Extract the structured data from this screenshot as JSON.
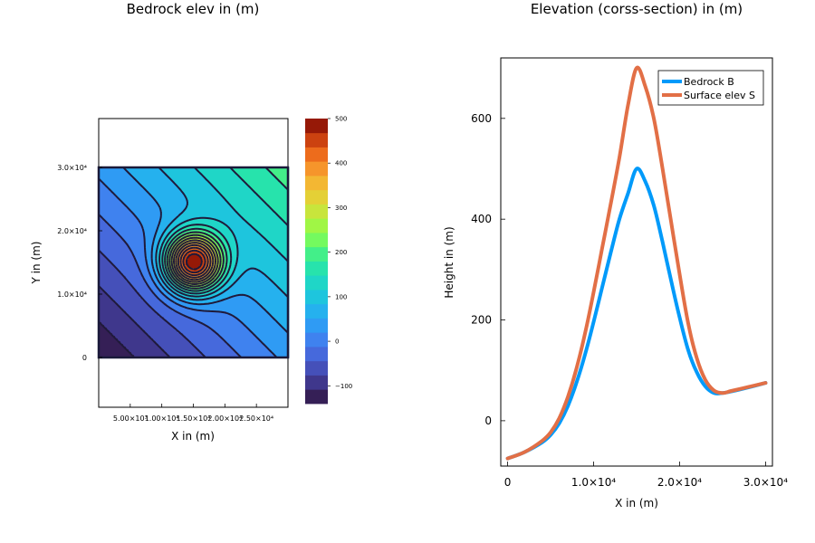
{
  "chart_data": [
    {
      "type": "contour",
      "title": "Bedrock elev in (m)",
      "xlabel": "X in (m)",
      "ylabel": "Y in (m)",
      "xlim": [
        0,
        30000
      ],
      "ylim": [
        0,
        30000
      ],
      "xticks": [
        {
          "value": 5000,
          "label": "5.00×10³"
        },
        {
          "value": 10000,
          "label": "1.00×10⁴"
        },
        {
          "value": 15000,
          "label": "1.50×10⁴"
        },
        {
          "value": 20000,
          "label": "2.00×10⁴"
        },
        {
          "value": 25000,
          "label": "2.50×10⁴"
        }
      ],
      "yticks": [
        {
          "value": 0,
          "label": "0"
        },
        {
          "value": 10000,
          "label": "1.0×10⁴"
        },
        {
          "value": 20000,
          "label": "2.0×10⁴"
        },
        {
          "value": 30000,
          "label": "3.0×10⁴"
        }
      ],
      "colorbar": {
        "range": [
          -140,
          500
        ],
        "ticks": [
          -100,
          0,
          100,
          200,
          300,
          400,
          500
        ],
        "labels": [
          "−100",
          "0",
          "100",
          "200",
          "300",
          "400",
          "500"
        ],
        "levels": 20
      },
      "field": {
        "description": "bedrock = tilted plane plus a gaussian hill",
        "peak_center": [
          15000,
          15000
        ],
        "peak_value": 500,
        "corner_min": -140,
        "corner_max": 200
      }
    },
    {
      "type": "line",
      "title": "Elevation (corss-section) in (m)",
      "xlabel": "X in (m)",
      "ylabel": "Height in (m)",
      "xlim": [
        -800,
        30800
      ],
      "ylim": [
        -90,
        720
      ],
      "xticks": [
        {
          "value": 0,
          "label": "0"
        },
        {
          "value": 10000,
          "label": "1.0×10⁴"
        },
        {
          "value": 20000,
          "label": "2.0×10⁴"
        },
        {
          "value": 30000,
          "label": "3.0×10⁴"
        }
      ],
      "yticks": [
        {
          "value": 0,
          "label": "0"
        },
        {
          "value": 200,
          "label": "200"
        },
        {
          "value": 400,
          "label": "400"
        },
        {
          "value": 600,
          "label": "600"
        }
      ],
      "legend": "top-right",
      "series": [
        {
          "name": "Bedrock B",
          "color": "#009AFA",
          "x": [
            0,
            2000,
            4000,
            5000,
            6000,
            7000,
            8000,
            9000,
            10000,
            11000,
            12000,
            13000,
            14000,
            15000,
            16000,
            17000,
            18000,
            19000,
            20000,
            21000,
            22000,
            23000,
            24000,
            25000,
            26000,
            28000,
            30000
          ],
          "values": [
            -75,
            -62,
            -43,
            -28,
            -5,
            29,
            75,
            131,
            196,
            265,
            334,
            400,
            451,
            500,
            475,
            427,
            356,
            279,
            205,
            140,
            96,
            68,
            55,
            55,
            58,
            66,
            75
          ]
        },
        {
          "name": "Surface elev S",
          "color": "#E26F46",
          "x": [
            0,
            2000,
            4000,
            5000,
            6000,
            7000,
            8000,
            9000,
            10000,
            11000,
            12000,
            13000,
            14000,
            15000,
            16000,
            17000,
            18000,
            19000,
            20000,
            21000,
            22000,
            23000,
            24000,
            25000,
            26000,
            28000,
            30000
          ],
          "values": [
            -75,
            -62,
            -40,
            -23,
            5,
            47,
            103,
            173,
            255,
            343,
            431,
            522,
            626,
            700,
            664,
            600,
            502,
            396,
            291,
            193,
            124,
            81,
            60,
            55,
            59,
            67,
            75
          ]
        }
      ]
    }
  ]
}
